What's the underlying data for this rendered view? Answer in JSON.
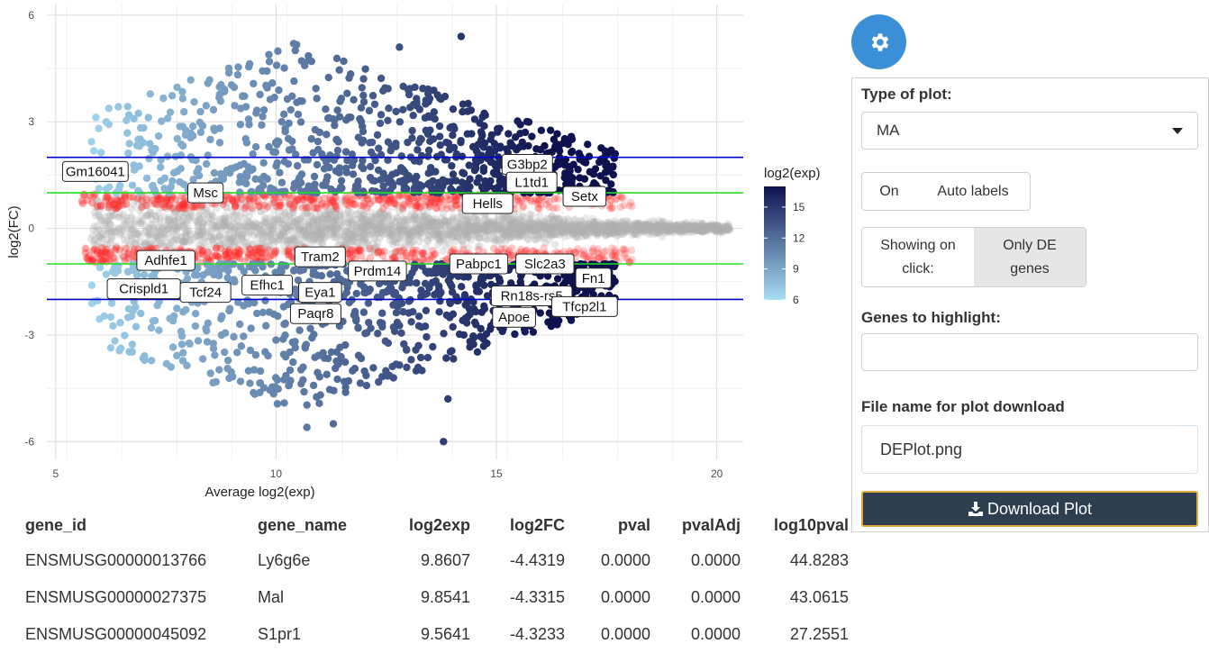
{
  "chart_data": {
    "type": "scatter",
    "xlabel": "Average log2(exp)",
    "ylabel": "log2(FC)",
    "xlim": [
      4.8,
      20.6
    ],
    "ylim": [
      -6.5,
      6.3
    ],
    "x_ticks": [
      5,
      10,
      15,
      20
    ],
    "y_ticks": [
      6,
      3,
      0,
      -3,
      -6
    ],
    "grid": true,
    "hlines": [
      {
        "y": 2,
        "color": "#0000cc"
      },
      {
        "y": 1,
        "color": "#22dd22"
      },
      {
        "y": -1,
        "color": "#22dd22"
      },
      {
        "y": -2,
        "color": "#0000cc"
      }
    ],
    "legend": {
      "title": "log2(exp)",
      "ticks": [
        15,
        12,
        9,
        6
      ],
      "range": [
        6,
        17
      ],
      "color_low": "#a8ddf5",
      "color_high": "#0d124f",
      "placement": "right"
    },
    "labeled_genes": [
      {
        "name": "G3bp2",
        "x": 15.7,
        "y": 1.8
      },
      {
        "name": "Gm16041",
        "x": 5.9,
        "y": 1.6
      },
      {
        "name": "L1td1",
        "x": 15.8,
        "y": 1.3
      },
      {
        "name": "Msc",
        "x": 8.4,
        "y": 1.0
      },
      {
        "name": "Setx",
        "x": 17.0,
        "y": 0.9
      },
      {
        "name": "Hells",
        "x": 14.8,
        "y": 0.7
      },
      {
        "name": "Slc2a3",
        "x": 16.1,
        "y": -1.0
      },
      {
        "name": "Tram2",
        "x": 11.0,
        "y": -0.8
      },
      {
        "name": "Adhfe1",
        "x": 7.5,
        "y": -0.9
      },
      {
        "name": "Fn1",
        "x": 17.2,
        "y": -1.4
      },
      {
        "name": "Pabpc1",
        "x": 14.6,
        "y": -1.0
      },
      {
        "name": "Prdm14",
        "x": 12.3,
        "y": -1.2
      },
      {
        "name": "Efhc1",
        "x": 9.8,
        "y": -1.6
      },
      {
        "name": "Eya1",
        "x": 11.0,
        "y": -1.8
      },
      {
        "name": "Crispld1",
        "x": 7.0,
        "y": -1.7
      },
      {
        "name": "Tcf24",
        "x": 8.4,
        "y": -1.8
      },
      {
        "name": "Rn18s-rs5",
        "x": 15.8,
        "y": -1.9
      },
      {
        "name": "Paqr8",
        "x": 10.9,
        "y": -2.4
      },
      {
        "name": "Apoe",
        "x": 15.4,
        "y": -2.5
      },
      {
        "name": "Tfcp2l1",
        "x": 17.0,
        "y": -2.2
      }
    ]
  },
  "table": {
    "headers": [
      "gene_id",
      "gene_name",
      "log2exp",
      "log2FC",
      "pval",
      "pvalAdj",
      "log10pval"
    ],
    "rows": [
      [
        "ENSMUSG00000013766",
        "Ly6g6e",
        "9.8607",
        "-4.4319",
        "0.0000",
        "0.0000",
        "44.8283"
      ],
      [
        "ENSMUSG00000027375",
        "Mal",
        "9.8541",
        "-4.3315",
        "0.0000",
        "0.0000",
        "43.0615"
      ],
      [
        "ENSMUSG00000045092",
        "S1pr1",
        "9.5641",
        "-4.3233",
        "0.0000",
        "0.0000",
        "27.2551"
      ]
    ]
  },
  "settings": {
    "gear_icon": "gear-icon",
    "plot_type_label": "Type of plot:",
    "plot_type_value": "MA",
    "auto_labels": {
      "on": "On",
      "label": "Auto labels"
    },
    "showing_on_click": {
      "label": "Showing on click:",
      "option": "Only DE genes"
    },
    "genes_to_highlight_label": "Genes to highlight:",
    "genes_to_highlight_value": "",
    "file_name_label": "File name for plot download",
    "file_name_value": "DEPlot.png",
    "download_button": "Download Plot",
    "download_icon": "download-icon",
    "accent": "#3a8fd6",
    "button_color": "#2c3e50"
  }
}
